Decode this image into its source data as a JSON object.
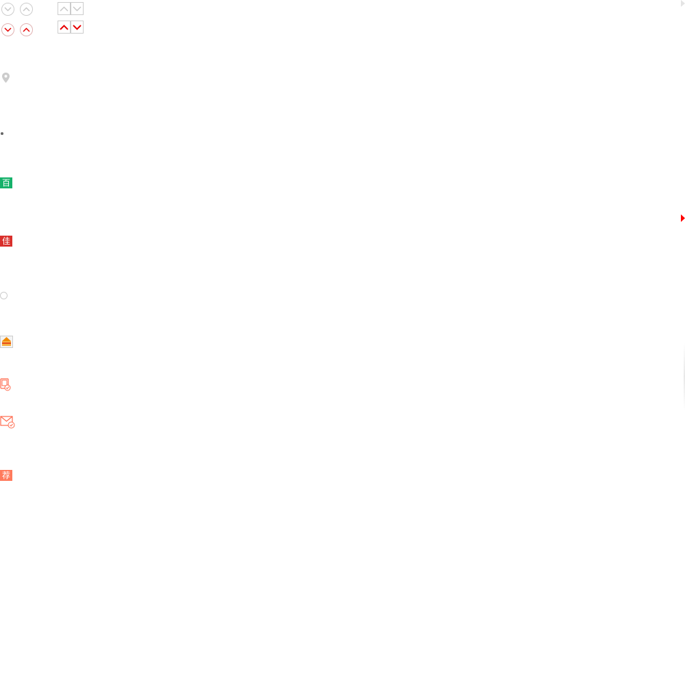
{
  "colors": {
    "gray": "#c8c8c8",
    "red": "#e60000",
    "green": "#15b16a",
    "crimson": "#d9302c",
    "coral": "#ff7a5c"
  },
  "icons": {
    "row1": [
      "chevron-down-circle-gray",
      "chevron-up-circle-gray",
      "chevron-up-square-gray",
      "chevron-down-square-gray"
    ],
    "row2": [
      "chevron-down-circle-red",
      "chevron-up-circle-red",
      "chevron-up-square-red",
      "chevron-down-square-red"
    ]
  },
  "badges": {
    "bai": "百",
    "jia": "佳",
    "jian": "荐"
  }
}
